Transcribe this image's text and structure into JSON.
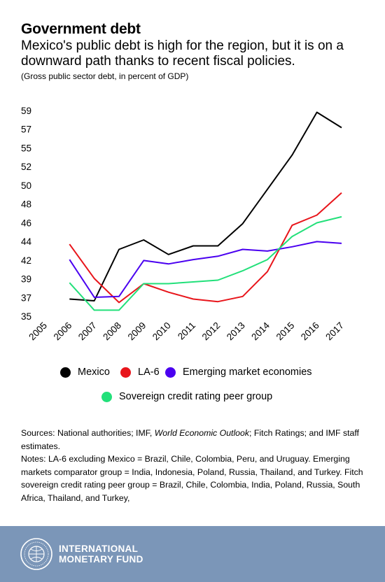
{
  "header": {
    "title": "Government debt",
    "subtitle": "Mexico's public debt is high for the region, but it is on a downward path thanks to recent fiscal policies.",
    "unit": "(Gross public sector debt, in percent of GDP)"
  },
  "chart_data": {
    "type": "line",
    "x": [
      "2005",
      "2006",
      "2007",
      "2008",
      "2009",
      "2010",
      "2011",
      "2012",
      "2013",
      "2014",
      "2015",
      "2016",
      "2017"
    ],
    "yticks": [
      "35",
      "37",
      "39",
      "42",
      "44",
      "46",
      "48",
      "50",
      "52",
      "55",
      "57",
      "59"
    ],
    "ylim": [
      35,
      59
    ],
    "grid": false,
    "legend_position": "bottom",
    "series": [
      {
        "name": "Mexico",
        "color": "#000000",
        "points": [
          [
            2006,
            37.0
          ],
          [
            2007,
            36.8
          ],
          [
            2008,
            42.8
          ],
          [
            2009,
            43.9
          ],
          [
            2010,
            42.2
          ],
          [
            2011,
            43.2
          ],
          [
            2012,
            43.2
          ],
          [
            2013,
            45.8
          ],
          [
            2014,
            49.8
          ],
          [
            2015,
            53.8
          ],
          [
            2016,
            58.8
          ],
          [
            2017,
            57.0
          ]
        ]
      },
      {
        "name": "LA-6",
        "color": "#e8151b",
        "points": [
          [
            2006,
            43.4
          ],
          [
            2007,
            39.4
          ],
          [
            2008,
            36.6
          ],
          [
            2009,
            38.8
          ],
          [
            2010,
            37.8
          ],
          [
            2011,
            37.0
          ],
          [
            2012,
            36.7
          ],
          [
            2013,
            37.3
          ],
          [
            2014,
            40.2
          ],
          [
            2015,
            45.6
          ],
          [
            2016,
            46.8
          ],
          [
            2017,
            49.4
          ]
        ]
      },
      {
        "name": "Emerging market economies",
        "color": "#4a00f0",
        "points": [
          [
            2006,
            41.6
          ],
          [
            2007,
            37.2
          ],
          [
            2008,
            37.3
          ],
          [
            2009,
            41.5
          ],
          [
            2010,
            41.1
          ],
          [
            2011,
            41.6
          ],
          [
            2012,
            42.0
          ],
          [
            2013,
            42.8
          ],
          [
            2014,
            42.6
          ],
          [
            2015,
            43.1
          ],
          [
            2016,
            43.7
          ],
          [
            2017,
            43.5
          ]
        ]
      },
      {
        "name": "Sovereign credit rating peer group",
        "color": "#22e07a",
        "points": [
          [
            2006,
            38.9
          ],
          [
            2007,
            35.7
          ],
          [
            2008,
            35.7
          ],
          [
            2009,
            38.8
          ],
          [
            2010,
            38.8
          ],
          [
            2011,
            39.0
          ],
          [
            2012,
            39.2
          ],
          [
            2013,
            40.3
          ],
          [
            2014,
            41.6
          ],
          [
            2015,
            44.3
          ],
          [
            2016,
            45.9
          ],
          [
            2017,
            46.6
          ]
        ]
      }
    ]
  },
  "notes": {
    "sources_a": "Sources: National authorities; IMF, ",
    "sources_italic": "World Economic Outlook",
    "sources_b": "; Fitch Ratings; and IMF staff estimates.",
    "notes_text": "Notes: LA-6 excluding Mexico = Brazil, Chile, Colombia, Peru, and Uruguay. Emerging markets comparator group = India, Indonesia, Poland, Russia, Thailand, and Turkey. Fitch sovereign credit rating peer group = Brazil, Chile, Colombia, India, Poland, Russia, South Africa, Thailand, and Turkey,"
  },
  "footer": {
    "brand_line1": "INTERNATIONAL",
    "brand_line2": "MONETARY FUND",
    "background": "#7b96b8"
  }
}
